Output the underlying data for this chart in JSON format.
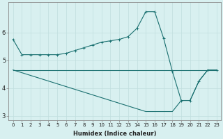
{
  "x": [
    0,
    1,
    2,
    3,
    4,
    5,
    6,
    7,
    8,
    9,
    10,
    11,
    12,
    13,
    14,
    15,
    16,
    17,
    18,
    19,
    20,
    21,
    22,
    23
  ],
  "line1": [
    5.75,
    5.2,
    5.2,
    5.2,
    5.2,
    5.2,
    5.25,
    5.35,
    5.45,
    5.55,
    5.65,
    5.7,
    5.75,
    5.85,
    6.15,
    6.75,
    6.75,
    5.8,
    4.6,
    3.55,
    3.55,
    4.25,
    4.65,
    4.65
  ],
  "line2": [
    4.65,
    4.65,
    4.65,
    4.65,
    4.65,
    4.65,
    4.65,
    4.65,
    4.65,
    4.65,
    4.65,
    4.65,
    4.65,
    4.65,
    4.65,
    4.65,
    4.65,
    4.65,
    4.65,
    4.65,
    4.65,
    4.65,
    4.65,
    4.65
  ],
  "line3": [
    4.65,
    4.55,
    4.45,
    4.35,
    4.25,
    4.15,
    4.05,
    3.95,
    3.85,
    3.75,
    3.65,
    3.55,
    3.45,
    3.35,
    3.25,
    3.15,
    3.15,
    3.15,
    3.15,
    3.55,
    3.55,
    4.25,
    4.65,
    4.65
  ],
  "bg_color": "#d8f0f0",
  "line_color": "#1a7070",
  "grid_color": "#c0dede",
  "xlabel": "Humidex (Indice chaleur)",
  "ylim": [
    2.85,
    7.1
  ],
  "xlim": [
    -0.5,
    23.5
  ],
  "yticks": [
    3,
    4,
    5,
    6
  ],
  "xticks": [
    0,
    1,
    2,
    3,
    4,
    5,
    6,
    7,
    8,
    9,
    10,
    11,
    12,
    13,
    14,
    15,
    16,
    17,
    18,
    19,
    20,
    21,
    22,
    23
  ],
  "xlabel_fontsize": 6.0,
  "tick_fontsize_x": 5.0,
  "tick_fontsize_y": 6.0,
  "linewidth": 0.8,
  "marker_size": 2.5
}
